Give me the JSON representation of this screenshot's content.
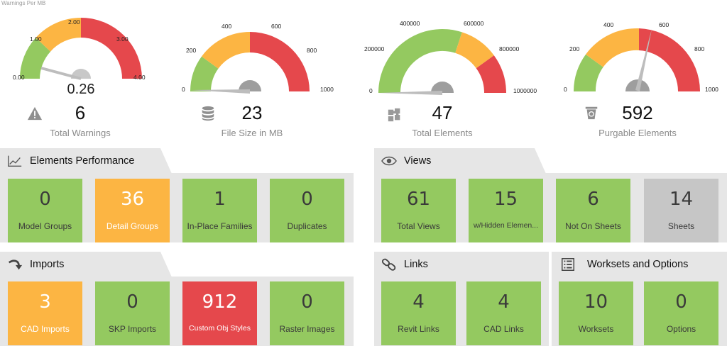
{
  "caption": "Warnings Per MB",
  "colors": {
    "green": "#94c960",
    "orange": "#fcb543",
    "red": "#e5484c",
    "grey": "#c6c6c6",
    "panel": "#e6e6e6"
  },
  "gauges": [
    {
      "value_label": "0.26",
      "ticks": [
        "0.00",
        "1.00",
        "2.00",
        "3.00",
        "4.00"
      ]
    },
    {
      "ticks": [
        "0",
        "200",
        "400",
        "600",
        "800",
        "1000"
      ]
    },
    {
      "ticks": [
        "0",
        "200000",
        "400000",
        "600000",
        "800000",
        "1000000"
      ]
    },
    {
      "ticks": [
        "0",
        "200",
        "400",
        "600",
        "800",
        "1000"
      ]
    }
  ],
  "stats": [
    {
      "value": "6",
      "label": "Total Warnings",
      "icon": "warning-icon"
    },
    {
      "value": "23",
      "label": "File Size in MB",
      "icon": "database-icon"
    },
    {
      "value": "47",
      "label": "Total Elements",
      "icon": "puzzle-icon"
    },
    {
      "value": "592",
      "label": "Purgable Elements",
      "icon": "recycle-bin-icon"
    }
  ],
  "panels": {
    "elements": {
      "title": "Elements Performance",
      "icon": "trend-chart-icon",
      "tiles": [
        {
          "value": "0",
          "label": "Model Groups",
          "color": "green"
        },
        {
          "value": "36",
          "label": "Detail Groups",
          "color": "orange"
        },
        {
          "value": "1",
          "label": "In-Place Families",
          "color": "green"
        },
        {
          "value": "0",
          "label": "Duplicates",
          "color": "green"
        }
      ]
    },
    "views": {
      "title": "Views",
      "icon": "eye-icon",
      "tiles": [
        {
          "value": "61",
          "label": "Total Views",
          "color": "green"
        },
        {
          "value": "15",
          "label": "w/Hidden Elemen...",
          "color": "green"
        },
        {
          "value": "6",
          "label": "Not On Sheets",
          "color": "green"
        },
        {
          "value": "14",
          "label": "Sheets",
          "color": "grey"
        }
      ]
    },
    "imports": {
      "title": "Imports",
      "icon": "curved-arrow-icon",
      "tiles": [
        {
          "value": "3",
          "label": "CAD Imports",
          "color": "orange"
        },
        {
          "value": "0",
          "label": "SKP Imports",
          "color": "green"
        },
        {
          "value": "912",
          "label": "Custom Obj Styles",
          "color": "red"
        },
        {
          "value": "0",
          "label": "Raster Images",
          "color": "green"
        }
      ]
    },
    "links": {
      "title": "Links",
      "icon": "chain-link-icon",
      "tiles": [
        {
          "value": "4",
          "label": "Revit Links",
          "color": "green"
        },
        {
          "value": "4",
          "label": "CAD Links",
          "color": "green"
        }
      ]
    },
    "worksets": {
      "title": "Worksets and Options",
      "icon": "checklist-icon",
      "tiles": [
        {
          "value": "10",
          "label": "Worksets",
          "color": "green"
        },
        {
          "value": "0",
          "label": "Options",
          "color": "green"
        }
      ]
    }
  }
}
